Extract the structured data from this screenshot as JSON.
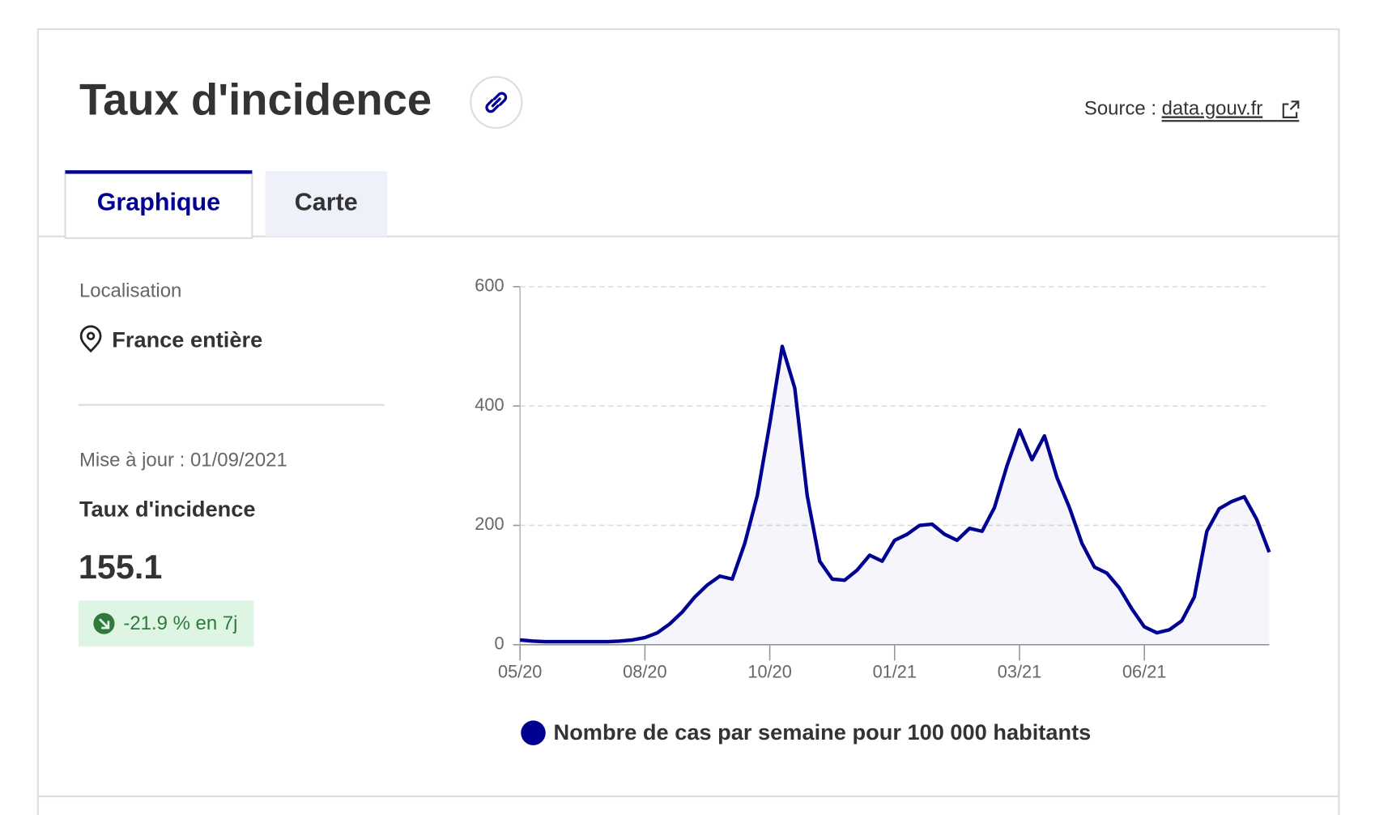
{
  "header": {
    "title": "Taux d'incidence",
    "source_label": "Source :",
    "source_link": "data.gouv.fr"
  },
  "tabs": [
    "Graphique",
    "Carte"
  ],
  "panel": {
    "location_label": "Localisation",
    "location": "France entière",
    "updated": "Mise à jour : 01/09/2021",
    "indicator": "Taux d'incidence",
    "value": "155.1",
    "change": "-21.9 % en 7j"
  },
  "chart_data": {
    "type": "line",
    "area": true,
    "categories": [
      "05/20",
      null,
      null,
      null,
      null,
      null,
      null,
      null,
      null,
      null,
      "08/20",
      null,
      null,
      null,
      null,
      null,
      null,
      null,
      null,
      null,
      "10/20",
      null,
      null,
      null,
      null,
      null,
      null,
      null,
      null,
      null,
      "01/21",
      null,
      null,
      null,
      null,
      null,
      null,
      null,
      null,
      null,
      "03/21",
      null,
      null,
      null,
      null,
      null,
      null,
      null,
      null,
      null,
      "06/21",
      null,
      null,
      null,
      null,
      null,
      null,
      null,
      null,
      null,
      null
    ],
    "series": [
      {
        "name": "Nombre de cas par semaine pour 100 000 habitants",
        "color": "#000091",
        "values": [
          8,
          6,
          5,
          5,
          5,
          5,
          5,
          5,
          6,
          8,
          12,
          20,
          35,
          55,
          80,
          100,
          115,
          110,
          170,
          250,
          370,
          500,
          430,
          250,
          140,
          110,
          108,
          125,
          150,
          140,
          175,
          185,
          200,
          202,
          185,
          175,
          195,
          190,
          230,
          300,
          360,
          310,
          350,
          280,
          230,
          170,
          130,
          120,
          95,
          60,
          30,
          20,
          25,
          40,
          80,
          190,
          228,
          240,
          248,
          210,
          155
        ]
      }
    ],
    "ylim": [
      0,
      600
    ],
    "yticks": [
      0,
      200,
      400,
      600
    ],
    "grid": true
  }
}
